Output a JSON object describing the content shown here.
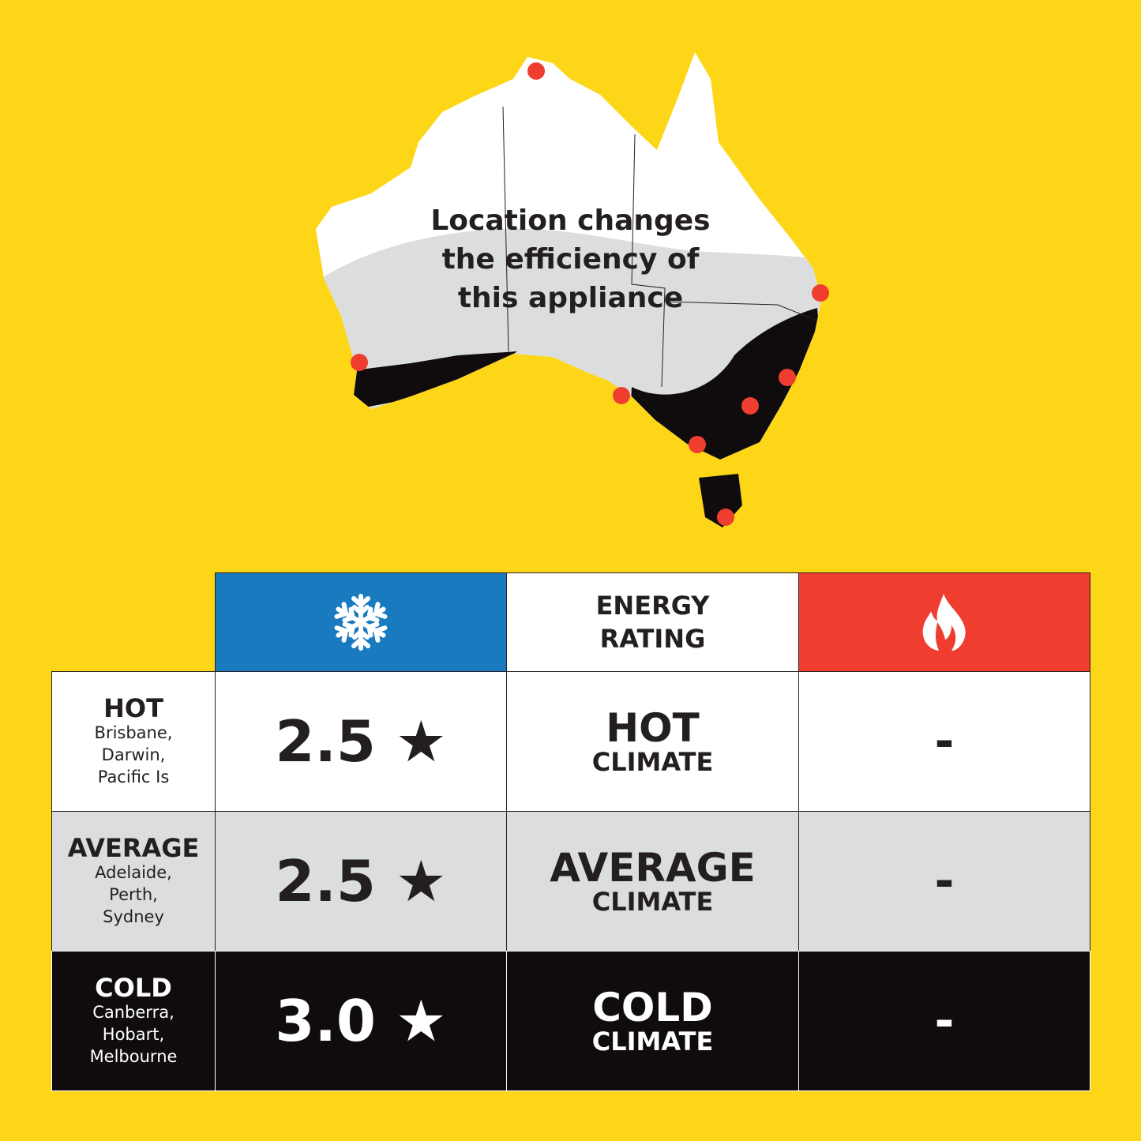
{
  "map": {
    "caption": [
      "Location changes",
      "the efficiency of",
      "this appliance"
    ]
  },
  "colors": {
    "background": "#FCD617",
    "cooling": "#1A7ABF",
    "heating": "#EF3E2F",
    "cold": "#100C0D",
    "average": "#DCDDDF",
    "hot": "#FFFFFF",
    "marker": "#EF3E2F"
  },
  "header": {
    "cooling_icon": "snowflake-icon",
    "energy_rating": [
      "ENERGY",
      "RATING"
    ],
    "heating_icon": "flame-icon"
  },
  "rows": [
    {
      "zone": "HOT",
      "cities": [
        "Brisbane,",
        "Darwin,",
        "Pacific Is"
      ],
      "cooling": "2.5 ★",
      "climate": "HOT",
      "climate_sub": "CLIMATE",
      "heating": "-"
    },
    {
      "zone": "AVERAGE",
      "cities": [
        "Adelaide,",
        "Perth,",
        "Sydney"
      ],
      "cooling": "2.5 ★",
      "climate": "AVERAGE",
      "climate_sub": "CLIMATE",
      "heating": "-"
    },
    {
      "zone": "COLD",
      "cities": [
        "Canberra,",
        "Hobart,",
        "Melbourne"
      ],
      "cooling": "3.0 ★",
      "climate": "COLD",
      "climate_sub": "CLIMATE",
      "heating": "-"
    }
  ]
}
